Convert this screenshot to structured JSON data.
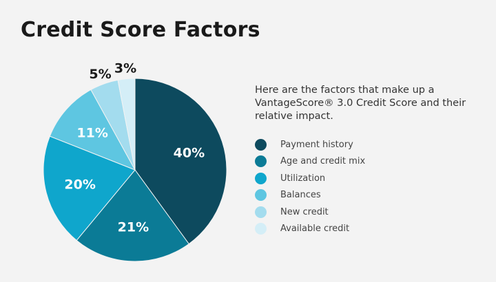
{
  "title": "Credit Score Factors",
  "description": "Here are the factors that make up a VantageScore® 3.0 Credit Score and their relative impact.",
  "chart_data": {
    "type": "pie",
    "title": "Credit Score Factors",
    "categories": [
      "Payment history",
      "Age and credit mix",
      "Utilization",
      "Balances",
      "New credit",
      "Available credit"
    ],
    "values": [
      40,
      21,
      20,
      11,
      5,
      3
    ],
    "labels": [
      "40%",
      "21%",
      "20%",
      "11%",
      "5%",
      "3%"
    ],
    "colors": [
      "#0d4a5e",
      "#0b7b96",
      "#0fa6cc",
      "#5ec6e1",
      "#a3dcee",
      "#d4eef7"
    ],
    "start": "top",
    "direction": "clockwise",
    "legend": "right"
  }
}
